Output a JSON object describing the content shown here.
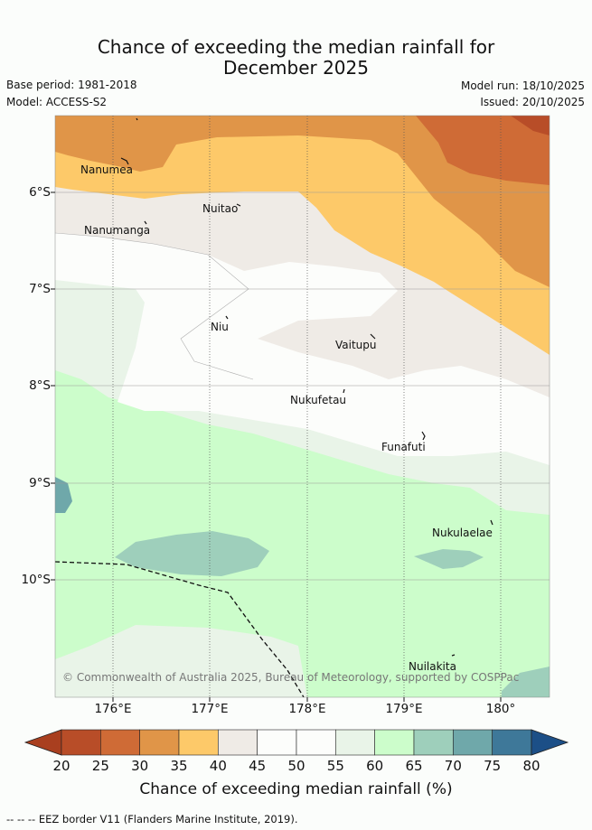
{
  "header": {
    "title_line1": "Chance of exceeding the median rainfall for",
    "title_line2": "December 2025",
    "base_period": "Base period: 1981-2018",
    "model": "Model: ACCESS-S2",
    "model_run": "Model run: 18/10/2025",
    "issued": "Issued: 20/10/2025"
  },
  "map": {
    "copyright": "© Commonwealth of Australia 2025, Bureau of Meteorology, supported by COSPPac",
    "lat_labels": [
      "6°S",
      "7°S",
      "8°S",
      "9°S",
      "10°S"
    ],
    "lon_labels": [
      "176°E",
      "177°E",
      "178°E",
      "179°E",
      "180°"
    ],
    "islands": [
      {
        "name": "Nanumea"
      },
      {
        "name": "Nuitao"
      },
      {
        "name": "Nanumanga"
      },
      {
        "name": "Niu"
      },
      {
        "name": "Vaitupu"
      },
      {
        "name": "Nukufetau"
      },
      {
        "name": "Funafuti"
      },
      {
        "name": "Nukulaelae"
      },
      {
        "name": "Nuilakita"
      }
    ]
  },
  "colorbar": {
    "title": "Chance of exceeding median rainfall (%)",
    "ticks": [
      "20",
      "25",
      "30",
      "35",
      "40",
      "45",
      "50",
      "55",
      "60",
      "65",
      "70",
      "75",
      "80"
    ],
    "colors": [
      "#a93f1f",
      "#b84d28",
      "#cf6b36",
      "#e09548",
      "#fdc969",
      "#efebe6",
      "#fcfdfb",
      "#fcfdfb",
      "#e9f4e8",
      "#ccfdcb",
      "#9ecfbb",
      "#6fa8aa",
      "#3e7899",
      "#1c4f87"
    ]
  },
  "footer": {
    "eez_legend": "-- -- -- EEZ border V11 (Flanders Marine Institute, 2019)."
  }
}
